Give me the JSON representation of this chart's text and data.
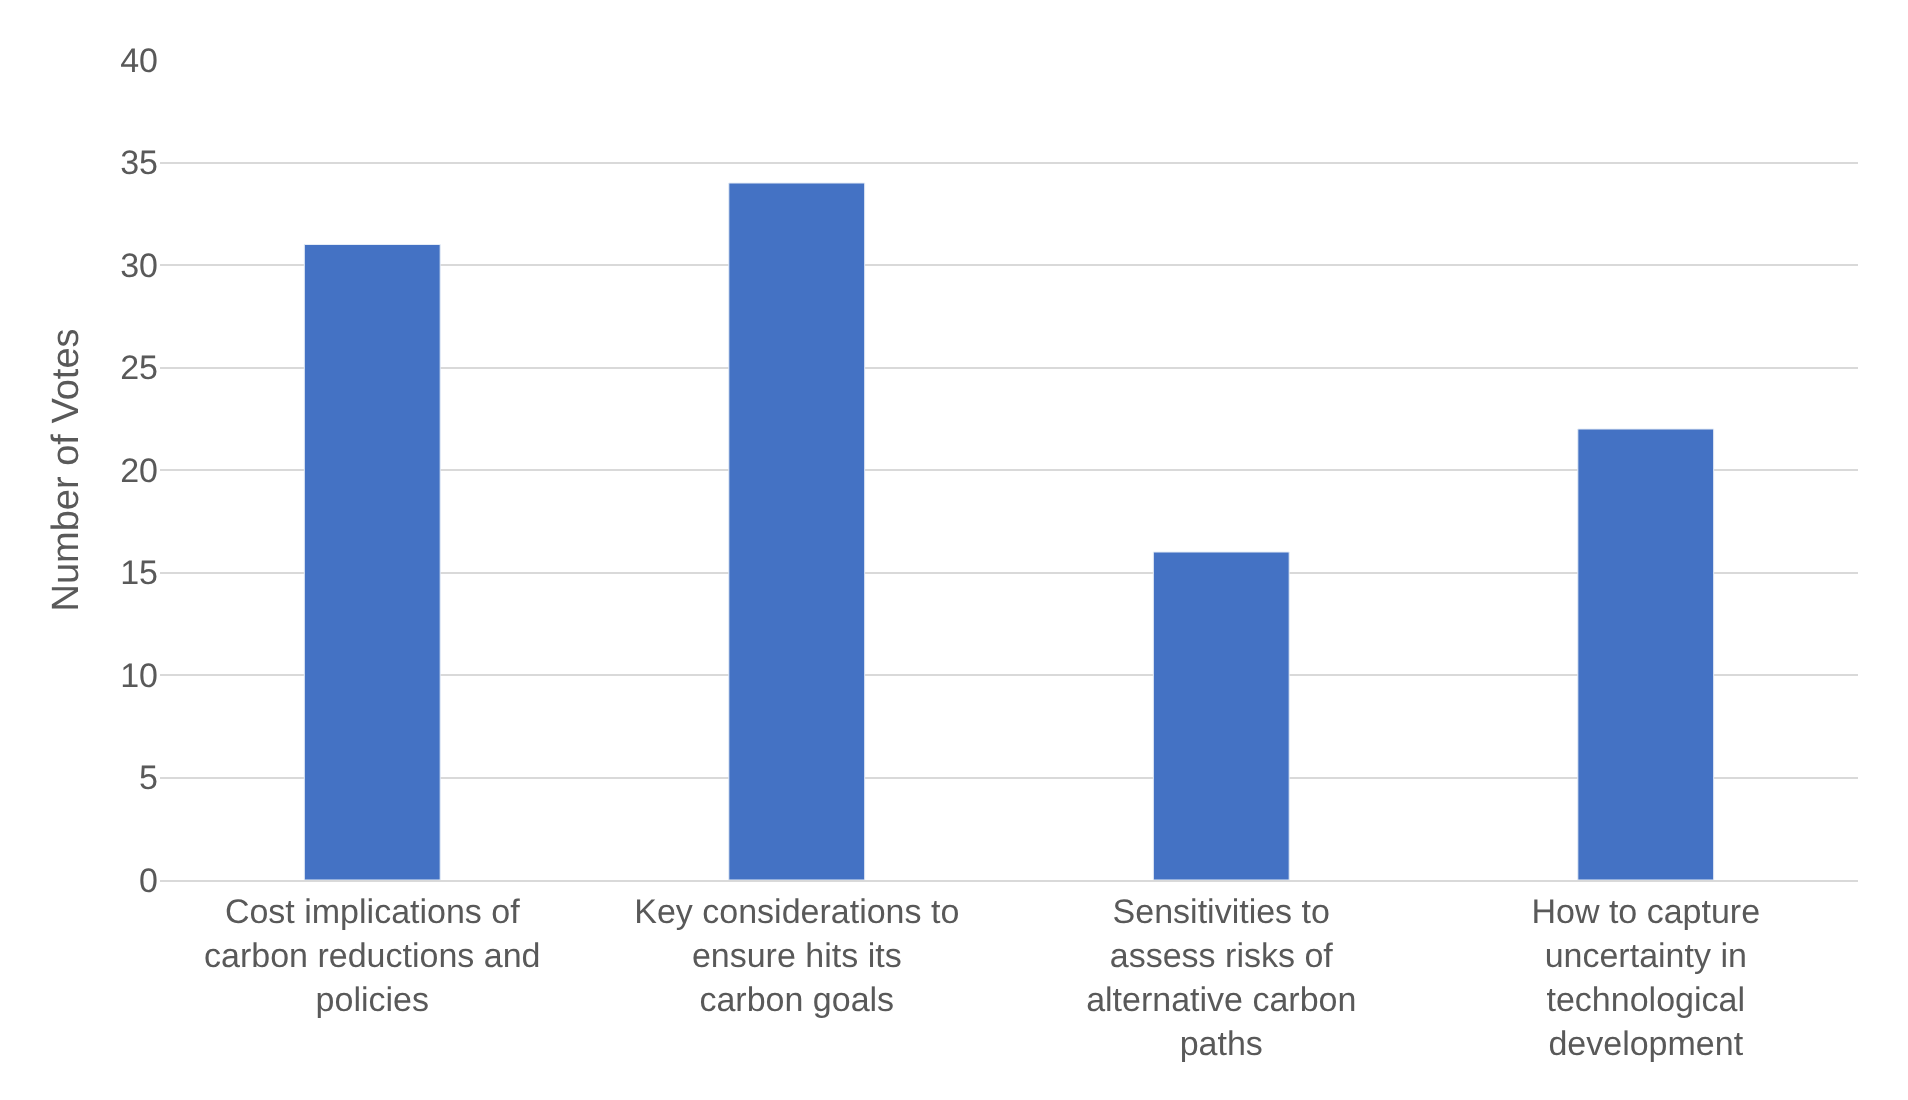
{
  "chart_data": {
    "type": "bar",
    "ylabel": "Number of Votes",
    "categories": [
      "Cost implications of carbon reductions and policies",
      "Key considerations to ensure hits its carbon goals",
      "Sensitivities to assess risks of alternative carbon paths",
      "How to capture uncertainty in technological development"
    ],
    "values": [
      31,
      34,
      16,
      22
    ],
    "color": "#4472c4",
    "ylim": [
      0,
      40
    ],
    "yticks": [
      0,
      5,
      10,
      15,
      20,
      25,
      30,
      35,
      40
    ],
    "grid": "y"
  }
}
